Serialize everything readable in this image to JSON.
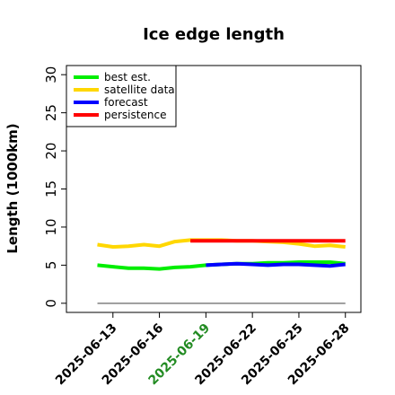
{
  "chart_data": {
    "type": "line",
    "title": "Ice edge length",
    "xlabel": "",
    "ylabel": "Length (1000km)",
    "ylim": [
      0,
      30
    ],
    "yticks": [
      0,
      5,
      10,
      15,
      20,
      25,
      30
    ],
    "xlim": [
      "2025-06-10",
      "2025-06-29"
    ],
    "xticks": [
      {
        "date": "2025-06-13",
        "label": "2025-06-13",
        "color": "#000000"
      },
      {
        "date": "2025-06-16",
        "label": "2025-06-16",
        "color": "#000000"
      },
      {
        "date": "2025-06-19",
        "label": "2025-06-19",
        "color": "#228b22"
      },
      {
        "date": "2025-06-22",
        "label": "2025-06-22",
        "color": "#000000"
      },
      {
        "date": "2025-06-25",
        "label": "2025-06-25",
        "color": "#000000"
      },
      {
        "date": "2025-06-28",
        "label": "2025-06-28",
        "color": "#000000"
      }
    ],
    "legend_position": "top-left",
    "grid": false,
    "series": [
      {
        "name": "best est.",
        "color": "#00ee00",
        "points": [
          {
            "x": "2025-06-12",
            "y": 5.0
          },
          {
            "x": "2025-06-13",
            "y": 4.8
          },
          {
            "x": "2025-06-14",
            "y": 4.6
          },
          {
            "x": "2025-06-15",
            "y": 4.6
          },
          {
            "x": "2025-06-16",
            "y": 4.5
          },
          {
            "x": "2025-06-17",
            "y": 4.7
          },
          {
            "x": "2025-06-18",
            "y": 4.8
          },
          {
            "x": "2025-06-19",
            "y": 5.0
          },
          {
            "x": "2025-06-20",
            "y": 5.1
          },
          {
            "x": "2025-06-21",
            "y": 5.2
          },
          {
            "x": "2025-06-22",
            "y": 5.2
          },
          {
            "x": "2025-06-23",
            "y": 5.3
          },
          {
            "x": "2025-06-24",
            "y": 5.3
          },
          {
            "x": "2025-06-25",
            "y": 5.4
          },
          {
            "x": "2025-06-26",
            "y": 5.4
          },
          {
            "x": "2025-06-27",
            "y": 5.4
          },
          {
            "x": "2025-06-28",
            "y": 5.2
          }
        ]
      },
      {
        "name": "satellite data",
        "color": "#ffd700",
        "points": [
          {
            "x": "2025-06-12",
            "y": 7.7
          },
          {
            "x": "2025-06-13",
            "y": 7.4
          },
          {
            "x": "2025-06-14",
            "y": 7.5
          },
          {
            "x": "2025-06-15",
            "y": 7.7
          },
          {
            "x": "2025-06-16",
            "y": 7.5
          },
          {
            "x": "2025-06-17",
            "y": 8.1
          },
          {
            "x": "2025-06-18",
            "y": 8.3
          },
          {
            "x": "2025-06-19",
            "y": 8.3
          },
          {
            "x": "2025-06-20",
            "y": 8.3
          },
          {
            "x": "2025-06-21",
            "y": 8.2
          },
          {
            "x": "2025-06-22",
            "y": 8.2
          },
          {
            "x": "2025-06-23",
            "y": 8.1
          },
          {
            "x": "2025-06-24",
            "y": 8.0
          },
          {
            "x": "2025-06-25",
            "y": 7.8
          },
          {
            "x": "2025-06-26",
            "y": 7.5
          },
          {
            "x": "2025-06-27",
            "y": 7.6
          },
          {
            "x": "2025-06-28",
            "y": 7.4
          }
        ]
      },
      {
        "name": "forecast",
        "color": "#0000ff",
        "points": [
          {
            "x": "2025-06-19",
            "y": 5.0
          },
          {
            "x": "2025-06-20",
            "y": 5.1
          },
          {
            "x": "2025-06-21",
            "y": 5.2
          },
          {
            "x": "2025-06-22",
            "y": 5.1
          },
          {
            "x": "2025-06-23",
            "y": 5.0
          },
          {
            "x": "2025-06-24",
            "y": 5.1
          },
          {
            "x": "2025-06-25",
            "y": 5.1
          },
          {
            "x": "2025-06-26",
            "y": 5.0
          },
          {
            "x": "2025-06-27",
            "y": 4.9
          },
          {
            "x": "2025-06-28",
            "y": 5.1
          }
        ]
      },
      {
        "name": "persistence",
        "color": "#ff0000",
        "points": [
          {
            "x": "2025-06-18",
            "y": 8.2
          },
          {
            "x": "2025-06-28",
            "y": 8.2
          }
        ]
      }
    ],
    "reference_line": {
      "color": "#808080",
      "x": [
        "2025-06-12",
        "2025-06-28"
      ],
      "y": 0
    }
  }
}
